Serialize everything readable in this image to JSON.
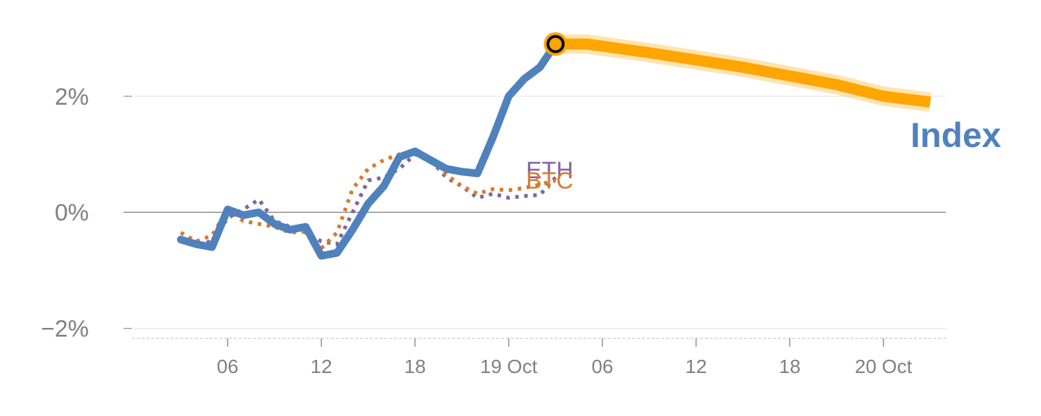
{
  "chart_data": {
    "type": "line",
    "y_unit": "%",
    "ylim": [
      -2.1,
      3.3
    ],
    "y_ticks": [
      {
        "value": 2,
        "label": "2%"
      },
      {
        "value": 0,
        "label": "0%"
      },
      {
        "value": -2,
        "label": "−2%"
      }
    ],
    "zero_line": true,
    "grid": true,
    "x_hours": [
      3,
      4,
      5,
      6,
      7,
      8,
      9,
      10,
      11,
      12,
      13,
      14,
      15,
      16,
      17,
      18,
      19,
      20,
      21,
      22,
      23,
      24,
      25,
      26,
      27
    ],
    "x_ticks": [
      {
        "hour": 6,
        "label": "06"
      },
      {
        "hour": 12,
        "label": "12"
      },
      {
        "hour": 18,
        "label": "18"
      },
      {
        "hour": 24,
        "label": "19 Oct"
      },
      {
        "hour": 30,
        "label": "06"
      },
      {
        "hour": 36,
        "label": "12"
      },
      {
        "hour": 42,
        "label": "18"
      },
      {
        "hour": 48,
        "label": "20 Oct"
      }
    ],
    "xlim": [
      0,
      52
    ],
    "series": [
      {
        "name": "Index",
        "color": "#4f81bd",
        "style": "solid",
        "values": [
          -0.47,
          -0.55,
          -0.6,
          0.05,
          -0.05,
          0.0,
          -0.2,
          -0.3,
          -0.25,
          -0.75,
          -0.7,
          -0.3,
          0.15,
          0.45,
          0.95,
          1.05,
          0.9,
          0.75,
          0.7,
          0.67,
          1.3,
          2.0,
          2.3,
          2.5,
          2.9
        ]
      },
      {
        "name": "ETH",
        "color": "#8064a2",
        "style": "dotted",
        "values": [
          -0.45,
          -0.55,
          -0.5,
          -0.1,
          0.05,
          0.22,
          -0.15,
          -0.25,
          -0.35,
          -0.5,
          -0.55,
          0.0,
          0.55,
          0.6,
          0.75,
          1.0,
          0.9,
          0.6,
          0.45,
          0.25,
          0.32,
          0.25,
          0.28,
          0.3,
          0.6
        ]
      },
      {
        "name": "BTC",
        "color": "#d97a2b",
        "style": "dotted",
        "values": [
          -0.35,
          -0.5,
          -0.4,
          0.05,
          -0.15,
          -0.2,
          -0.25,
          -0.35,
          -0.33,
          -0.62,
          -0.35,
          0.4,
          0.75,
          0.9,
          1.0,
          1.05,
          0.9,
          0.65,
          0.45,
          0.32,
          0.4,
          0.38,
          0.42,
          0.48,
          0.55
        ]
      }
    ],
    "forecast": {
      "color": "#ffa500",
      "x_hours": [
        27,
        29,
        33,
        39,
        45,
        48,
        51
      ],
      "values": [
        2.9,
        2.9,
        2.75,
        2.5,
        2.2,
        2.0,
        1.9
      ]
    },
    "current_marker": {
      "hour": 27,
      "value": 2.9
    }
  }
}
